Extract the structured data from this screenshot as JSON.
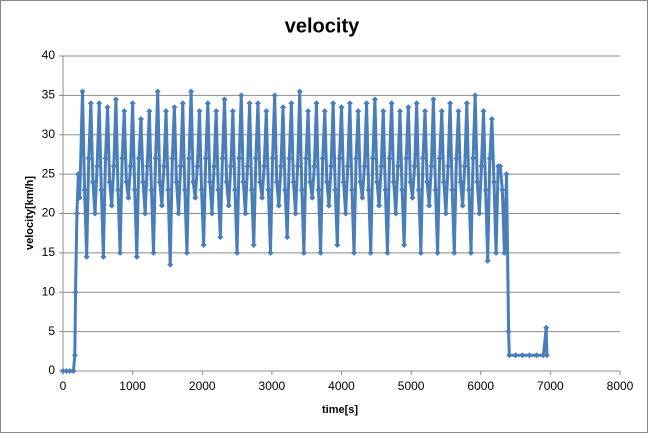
{
  "chart_data": {
    "type": "scatter",
    "title": "velocity",
    "x_label": "time[s]",
    "y_label": "velocity[km/h]",
    "color": "#4a7ebb",
    "grid": true,
    "xlim": [
      0,
      8000
    ],
    "xticks": [
      0,
      1000,
      2000,
      3000,
      4000,
      5000,
      6000,
      7000,
      8000
    ],
    "ylim": [
      0,
      40
    ],
    "yticks": [
      0,
      5,
      10,
      15,
      20,
      25,
      30,
      35,
      40
    ],
    "x": [
      0,
      50,
      100,
      150,
      170,
      180,
      200,
      220,
      240,
      280,
      310,
      340,
      370,
      400,
      430,
      460,
      490,
      520,
      550,
      580,
      610,
      640,
      670,
      700,
      730,
      760,
      790,
      820,
      850,
      880,
      910,
      940,
      970,
      1000,
      1030,
      1060,
      1090,
      1120,
      1150,
      1180,
      1210,
      1240,
      1270,
      1300,
      1330,
      1360,
      1390,
      1420,
      1450,
      1480,
      1510,
      1540,
      1570,
      1600,
      1630,
      1660,
      1690,
      1720,
      1750,
      1780,
      1810,
      1840,
      1870,
      1900,
      1930,
      1960,
      1990,
      2020,
      2050,
      2080,
      2110,
      2140,
      2170,
      2200,
      2230,
      2260,
      2290,
      2320,
      2350,
      2380,
      2410,
      2440,
      2470,
      2500,
      2530,
      2560,
      2590,
      2620,
      2650,
      2680,
      2710,
      2740,
      2770,
      2800,
      2830,
      2860,
      2890,
      2920,
      2950,
      2980,
      3010,
      3040,
      3070,
      3100,
      3130,
      3160,
      3190,
      3220,
      3250,
      3280,
      3310,
      3340,
      3370,
      3400,
      3430,
      3460,
      3490,
      3520,
      3550,
      3580,
      3610,
      3640,
      3670,
      3700,
      3730,
      3760,
      3790,
      3820,
      3850,
      3880,
      3910,
      3940,
      3970,
      4000,
      4030,
      4060,
      4090,
      4120,
      4150,
      4180,
      4210,
      4240,
      4270,
      4300,
      4330,
      4360,
      4390,
      4420,
      4450,
      4480,
      4510,
      4540,
      4570,
      4600,
      4630,
      4660,
      4690,
      4720,
      4750,
      4780,
      4810,
      4840,
      4870,
      4900,
      4930,
      4960,
      4990,
      5020,
      5050,
      5080,
      5110,
      5140,
      5170,
      5200,
      5230,
      5260,
      5290,
      5320,
      5350,
      5380,
      5410,
      5440,
      5470,
      5500,
      5530,
      5560,
      5590,
      5620,
      5650,
      5680,
      5710,
      5740,
      5770,
      5800,
      5830,
      5860,
      5890,
      5920,
      5950,
      5980,
      6010,
      6040,
      6070,
      6100,
      6130,
      6160,
      6190,
      6220,
      6250,
      6280,
      6310,
      6340,
      6370,
      6400,
      6410,
      6500,
      6600,
      6700,
      6800,
      6900,
      6940,
      6950
    ],
    "values": [
      0,
      0,
      0,
      0,
      2,
      10,
      20,
      25,
      22,
      35.5,
      23,
      14.5,
      27,
      34,
      24,
      20,
      26,
      34,
      23,
      14.5,
      27,
      33.5,
      24,
      21,
      26,
      34.5,
      23,
      15,
      27,
      33,
      24,
      22,
      26,
      34,
      23,
      14.5,
      27,
      32,
      24,
      20,
      26,
      33,
      23,
      15,
      27,
      35.5,
      24,
      21,
      26,
      33,
      23,
      13.5,
      27,
      33.5,
      24,
      20,
      26,
      34,
      23,
      15,
      27,
      35.5,
      24,
      22,
      26,
      33,
      23,
      16,
      27,
      34,
      24,
      20,
      26,
      33,
      23,
      17,
      27,
      34.5,
      24,
      21,
      26,
      33,
      23,
      15,
      27,
      35,
      24,
      20,
      26,
      34,
      23,
      16,
      27,
      34,
      24,
      22,
      26,
      33,
      23,
      15,
      27,
      35,
      24,
      21,
      26,
      33.5,
      23,
      17,
      27,
      34,
      24,
      20,
      26,
      35.5,
      23,
      15,
      27,
      33,
      24,
      22,
      26,
      34,
      23,
      15,
      27,
      33,
      24,
      21,
      26,
      34,
      23,
      16,
      27,
      33.5,
      24,
      20,
      26,
      34,
      23,
      15,
      27,
      33,
      24,
      22,
      26,
      34,
      23,
      15,
      27,
      34.5,
      24,
      21,
      26,
      33,
      23,
      15,
      27,
      34,
      24,
      20,
      26,
      33,
      23,
      16,
      27,
      33.5,
      24,
      22,
      26,
      34,
      23,
      15,
      27,
      33,
      24,
      21,
      26,
      34.5,
      23,
      15,
      27,
      33,
      24,
      20,
      26,
      34,
      23,
      15,
      27,
      33,
      24,
      21,
      26,
      34,
      23,
      15,
      27,
      35,
      24,
      20,
      26,
      33,
      23,
      14,
      27,
      32,
      24,
      15,
      26,
      26,
      23,
      15,
      25,
      5,
      2,
      2,
      2,
      2,
      2,
      2,
      5.5,
      2
    ]
  }
}
